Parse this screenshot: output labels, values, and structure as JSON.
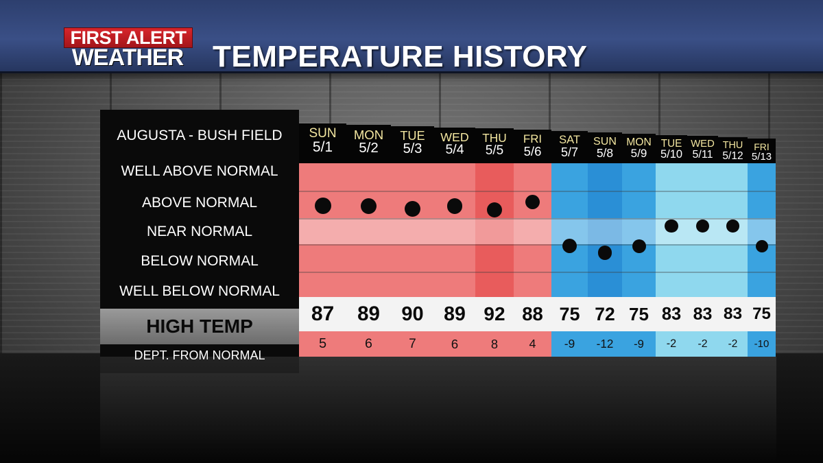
{
  "header": {
    "logo_line1": "FIRST ALERT",
    "logo_line2": "WEATHER",
    "title": "TEMPERATURE HISTORY"
  },
  "location": "AUGUSTA - BUSH FIELD",
  "categories": [
    "WELL ABOVE NORMAL",
    "ABOVE NORMAL",
    "NEAR NORMAL",
    "BELOW NORMAL",
    "WELL BELOW NORMAL"
  ],
  "high_temp_label": "HIGH TEMP",
  "dept_label": "DEPT. FROM NORMAL",
  "colors": {
    "warm": "#ee7b7b",
    "warm_dark": "#e85c5c",
    "cool": "#3aa3e0",
    "cool_dark": "#2a8fd6",
    "cool_light": "#8fd8ee",
    "header_blue": "#3a4f86",
    "day_name": "#f3e6a0"
  },
  "days": [
    {
      "name": "SUN",
      "date": "5/1",
      "high": "87",
      "dept": "5",
      "level": 1.6
    },
    {
      "name": "MON",
      "date": "5/2",
      "high": "89",
      "dept": "6",
      "level": 1.6
    },
    {
      "name": "TUE",
      "date": "5/3",
      "high": "90",
      "dept": "7",
      "level": 1.7
    },
    {
      "name": "WED",
      "date": "5/4",
      "high": "89",
      "dept": "6",
      "level": 1.6
    },
    {
      "name": "THU",
      "date": "5/5",
      "high": "92",
      "dept": "8",
      "level": 1.75
    },
    {
      "name": "FRI",
      "date": "5/6",
      "high": "88",
      "dept": "4",
      "level": 1.45
    },
    {
      "name": "SAT",
      "date": "5/7",
      "high": "75",
      "dept": "-9",
      "level": 3.1
    },
    {
      "name": "SUN",
      "date": "5/8",
      "high": "72",
      "dept": "-12",
      "level": 3.35
    },
    {
      "name": "MON",
      "date": "5/9",
      "high": "75",
      "dept": "-9",
      "level": 3.1
    },
    {
      "name": "TUE",
      "date": "5/10",
      "high": "83",
      "dept": "-2",
      "level": 2.35
    },
    {
      "name": "WED",
      "date": "5/11",
      "high": "83",
      "dept": "-2",
      "level": 2.35
    },
    {
      "name": "THU",
      "date": "5/12",
      "high": "83",
      "dept": "-2",
      "level": 2.35
    },
    {
      "name": "FRI",
      "date": "5/13",
      "high": "75",
      "dept": "-10",
      "level": 3.1
    }
  ]
}
